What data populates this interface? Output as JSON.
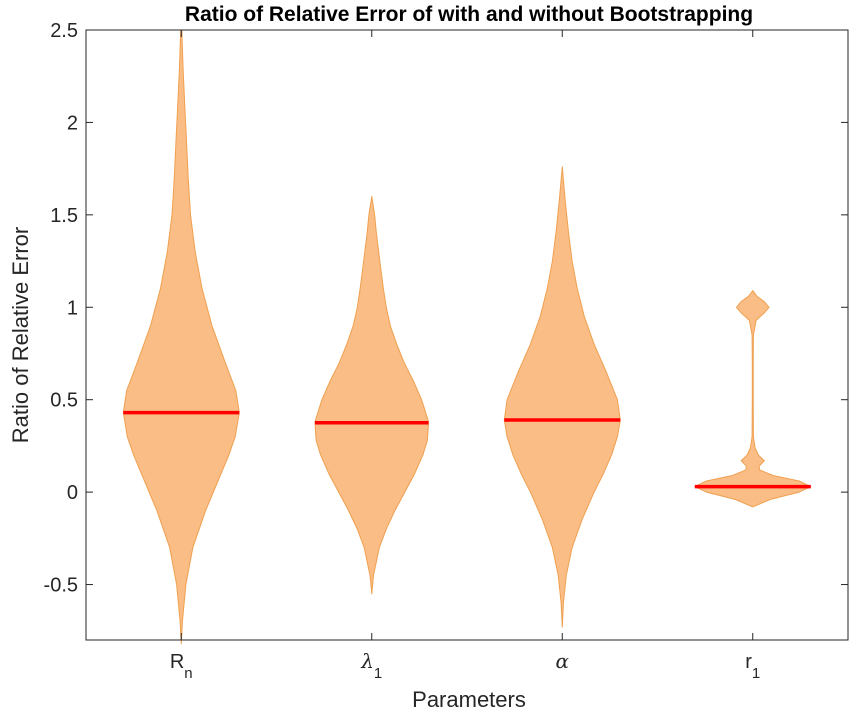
{
  "chart_data": {
    "type": "violin",
    "title": "Ratio of Relative Error of with and without Bootstrapping",
    "xlabel": "Parameters",
    "ylabel": "Ratio of Relative Error",
    "ylim": [
      -0.8,
      2.5
    ],
    "yticks": [
      -0.5,
      0,
      0.5,
      1,
      1.5,
      2,
      2.5
    ],
    "ytick_labels": [
      "-0.5",
      "0",
      "0.5",
      "1",
      "1.5",
      "2",
      "2.5"
    ],
    "categories": [
      {
        "main": "R",
        "sub": "n",
        "italic": false
      },
      {
        "main": "λ",
        "sub": "1",
        "italic": true
      },
      {
        "main": "α",
        "sub": "",
        "italic": true
      },
      {
        "main": "r",
        "sub": "1",
        "italic": false
      }
    ],
    "medians": [
      0.43,
      0.375,
      0.39,
      0.03
    ],
    "colors": {
      "fill": "#f9bd85",
      "edge": "#f0a050",
      "median": "#ff0000",
      "axis": "#262626"
    },
    "violins": [
      {
        "profile": [
          [
            -0.82,
            0.0
          ],
          [
            -0.7,
            0.02
          ],
          [
            -0.5,
            0.08
          ],
          [
            -0.3,
            0.2
          ],
          [
            -0.1,
            0.42
          ],
          [
            0.05,
            0.62
          ],
          [
            0.2,
            0.82
          ],
          [
            0.3,
            0.93
          ],
          [
            0.43,
            1.0
          ],
          [
            0.55,
            0.94
          ],
          [
            0.7,
            0.76
          ],
          [
            0.9,
            0.53
          ],
          [
            1.1,
            0.36
          ],
          [
            1.3,
            0.24
          ],
          [
            1.5,
            0.16
          ],
          [
            1.7,
            0.12
          ],
          [
            1.9,
            0.09
          ],
          [
            2.1,
            0.06
          ],
          [
            2.3,
            0.03
          ],
          [
            2.5,
            0.01
          ]
        ]
      },
      {
        "profile": [
          [
            -0.55,
            0.0
          ],
          [
            -0.45,
            0.03
          ],
          [
            -0.3,
            0.13
          ],
          [
            -0.2,
            0.25
          ],
          [
            -0.1,
            0.4
          ],
          [
            0.0,
            0.57
          ],
          [
            0.1,
            0.74
          ],
          [
            0.2,
            0.88
          ],
          [
            0.28,
            0.96
          ],
          [
            0.38,
            0.98
          ],
          [
            0.5,
            0.86
          ],
          [
            0.6,
            0.72
          ],
          [
            0.7,
            0.56
          ],
          [
            0.8,
            0.43
          ],
          [
            0.9,
            0.32
          ],
          [
            1.0,
            0.25
          ],
          [
            1.1,
            0.2
          ],
          [
            1.2,
            0.16
          ],
          [
            1.3,
            0.12
          ],
          [
            1.4,
            0.08
          ],
          [
            1.5,
            0.05
          ],
          [
            1.6,
            0.0
          ]
        ]
      },
      {
        "profile": [
          [
            -0.73,
            0.0
          ],
          [
            -0.6,
            0.02
          ],
          [
            -0.45,
            0.07
          ],
          [
            -0.3,
            0.17
          ],
          [
            -0.15,
            0.34
          ],
          [
            0.0,
            0.55
          ],
          [
            0.1,
            0.71
          ],
          [
            0.2,
            0.85
          ],
          [
            0.3,
            0.95
          ],
          [
            0.39,
            1.0
          ],
          [
            0.5,
            0.95
          ],
          [
            0.65,
            0.76
          ],
          [
            0.8,
            0.55
          ],
          [
            0.95,
            0.38
          ],
          [
            1.1,
            0.26
          ],
          [
            1.25,
            0.17
          ],
          [
            1.4,
            0.11
          ],
          [
            1.55,
            0.06
          ],
          [
            1.65,
            0.03
          ],
          [
            1.76,
            0.0
          ]
        ]
      },
      {
        "profile": [
          [
            -0.08,
            0.0
          ],
          [
            -0.04,
            0.3
          ],
          [
            0.0,
            0.8
          ],
          [
            0.03,
            1.0
          ],
          [
            0.06,
            0.8
          ],
          [
            0.09,
            0.35
          ],
          [
            0.12,
            0.12
          ],
          [
            0.14,
            0.11
          ],
          [
            0.17,
            0.2
          ],
          [
            0.2,
            0.1
          ],
          [
            0.24,
            0.04
          ],
          [
            0.3,
            0.012
          ],
          [
            0.5,
            0.008
          ],
          [
            0.7,
            0.008
          ],
          [
            0.85,
            0.012
          ],
          [
            0.93,
            0.06
          ],
          [
            0.97,
            0.2
          ],
          [
            1.0,
            0.28
          ],
          [
            1.03,
            0.2
          ],
          [
            1.06,
            0.07
          ],
          [
            1.09,
            0.0
          ]
        ]
      }
    ]
  }
}
